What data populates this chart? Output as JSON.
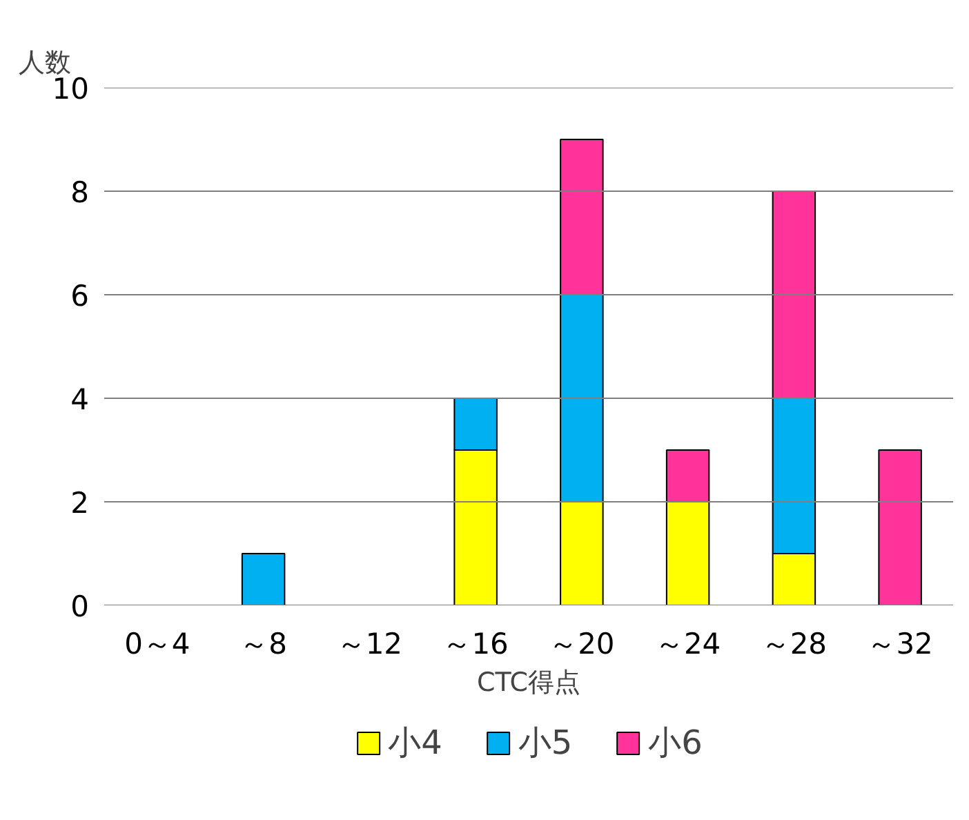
{
  "chart_data": {
    "type": "bar",
    "stacked": true,
    "xlabel": "CTC得点",
    "ylabel": "人数",
    "categories": [
      "0～4",
      "～8",
      "～12",
      "～16",
      "～20",
      "～24",
      "～28",
      "～32"
    ],
    "series": [
      {
        "name": "小4",
        "color": "#ffff00",
        "values": [
          0,
          0,
          0,
          3,
          2,
          2,
          1,
          0
        ]
      },
      {
        "name": "小5",
        "color": "#00b0f0",
        "values": [
          0,
          1,
          0,
          1,
          4,
          0,
          3,
          0
        ]
      },
      {
        "name": "小6",
        "color": "#ff3399",
        "values": [
          0,
          0,
          0,
          0,
          3,
          1,
          4,
          3
        ]
      }
    ],
    "ylim": [
      0,
      10
    ],
    "yticks": [
      0,
      2,
      4,
      6,
      8,
      10
    ],
    "grid": "y",
    "legend": "bottom"
  }
}
